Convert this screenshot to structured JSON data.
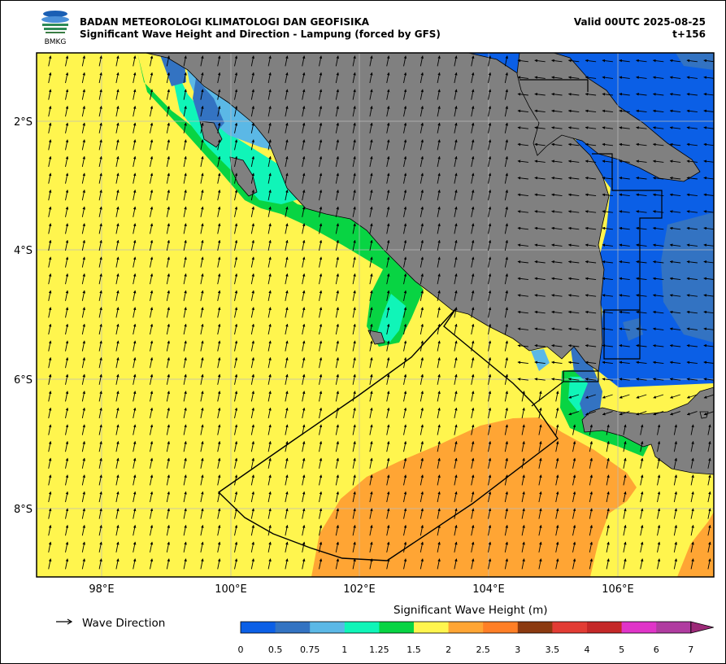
{
  "header": {
    "agency": "BADAN METEOROLOGI KLIMATOLOGI DAN GEOFISIKA",
    "product": "Significant Wave Height and Direction - Lampung (forced by GFS)",
    "valid": "Valid 00UTC 2025-08-25",
    "step": "t+156",
    "logo_text": "BMKG"
  },
  "map": {
    "lat_labels": [
      "2°S",
      "4°S",
      "6°S",
      "8°S"
    ],
    "lon_labels": [
      "98°E",
      "100°E",
      "102°E",
      "104°E",
      "106°E"
    ],
    "lon_range": [
      97.0,
      107.5
    ],
    "lat_range": [
      -9.05,
      -0.95
    ],
    "land_color": "#808080",
    "grid": true
  },
  "legend": {
    "arrow_label": "Wave Direction"
  },
  "colorbar": {
    "title": "Significant Wave Height (m)",
    "ticks": [
      "0",
      "0.5",
      "0.75",
      "1",
      "1.25",
      "1.5",
      "2",
      "2.5",
      "3",
      "3.5",
      "4",
      "5",
      "6",
      "7"
    ],
    "colors": [
      "#0b5fe6",
      "#3373c2",
      "#5bb8e6",
      "#10f5b8",
      "#08d443",
      "#fff54e",
      "#ffa534",
      "#ff7f26",
      "#8b3a10",
      "#e23c34",
      "#c42828",
      "#e034c8",
      "#b03ca0"
    ],
    "extend_color": "#9c2a78"
  }
}
